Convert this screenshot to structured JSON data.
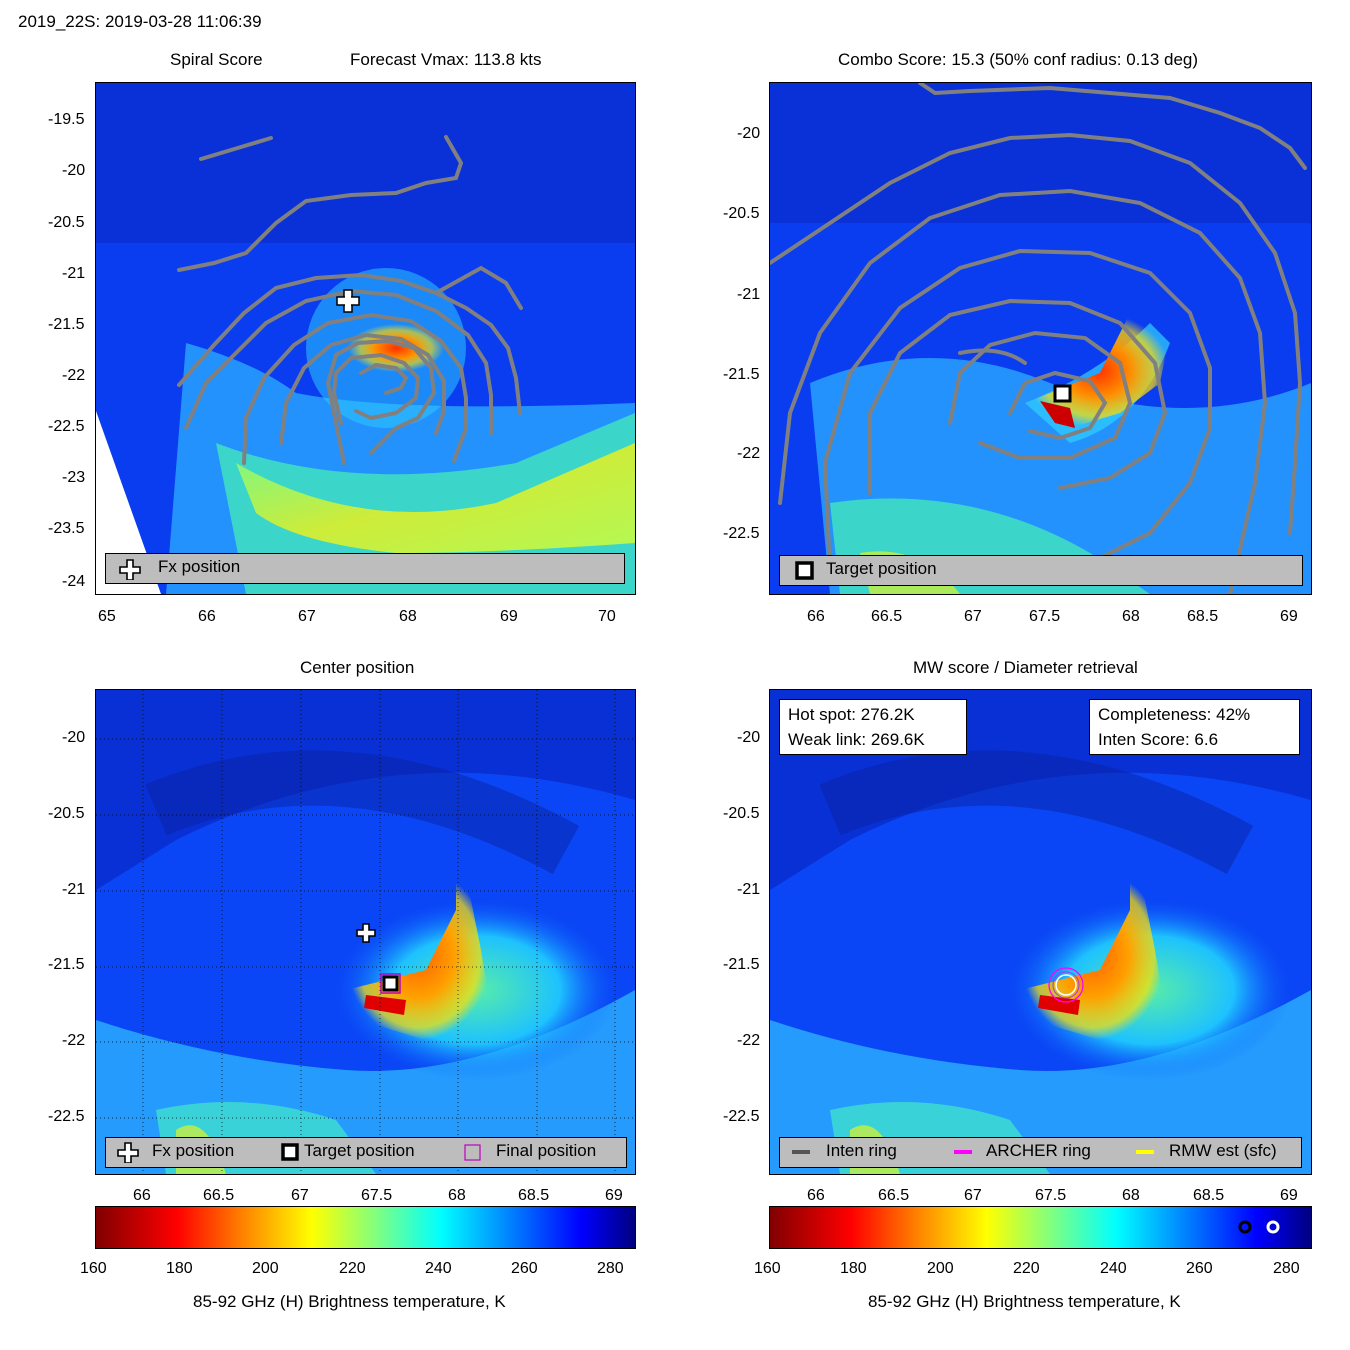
{
  "header": {
    "title": "2019_22S: 2019-03-28 11:06:39"
  },
  "colors": {
    "contour": "#808080",
    "inten_ring": "#555555",
    "archer_ring": "#ff00ff",
    "rmw": "#ffff00",
    "legend_bg": "#bdbdbd"
  },
  "panels": {
    "spiral": {
      "title": "Spiral Score",
      "subtitle": "Forecast Vmax: 113.8 kts",
      "legend": {
        "fx_label": "Fx position"
      },
      "x_ticks": [
        "65",
        "66",
        "67",
        "68",
        "69",
        "70"
      ],
      "y_ticks": [
        "-19.5",
        "-20",
        "-20.5",
        "-21",
        "-21.5",
        "-22",
        "-22.5",
        "-23",
        "-23.5",
        "-24"
      ]
    },
    "combo": {
      "title": "Combo Score: 15.3  (50% conf radius: 0.13 deg)",
      "legend": {
        "target_label": "Target position"
      },
      "x_ticks": [
        "66",
        "66.5",
        "67",
        "67.5",
        "68",
        "68.5",
        "69"
      ],
      "y_ticks": [
        "-20",
        "-20.5",
        "-21",
        "-21.5",
        "-22",
        "-22.5"
      ]
    },
    "center": {
      "title": "Center position",
      "legend": {
        "fx_label": "Fx position",
        "target_label": "Target position",
        "final_label": "Final position"
      },
      "x_ticks": [
        "66",
        "66.5",
        "67",
        "67.5",
        "68",
        "68.5",
        "69"
      ],
      "y_ticks": [
        "-20",
        "-20.5",
        "-21",
        "-21.5",
        "-22",
        "-22.5"
      ]
    },
    "mw": {
      "title": "MW score / Diameter retrieval",
      "hot_spot": "Hot spot: 276.2K",
      "weak_link": "Weak link: 269.6K",
      "completeness": "Completeness: 42%",
      "inten_score": "Inten Score: 6.6",
      "legend": {
        "inten_label": "Inten ring",
        "archer_label": "ARCHER ring",
        "rmw_label": "RMW est (sfc)"
      },
      "x_ticks": [
        "66",
        "66.5",
        "67",
        "67.5",
        "68",
        "68.5",
        "69"
      ],
      "y_ticks": [
        "-20",
        "-20.5",
        "-21",
        "-21.5",
        "-22",
        "-22.5"
      ]
    }
  },
  "colorbars": {
    "ticks": [
      "160",
      "180",
      "200",
      "220",
      "240",
      "260",
      "280"
    ],
    "label": "85-92 GHz (H) Brightness temperature, K"
  },
  "chart_data": [
    {
      "type": "heatmap",
      "title": "Spiral Score",
      "subtitle": "Forecast Vmax: 113.8 kts",
      "xlim": [
        64.9,
        70.3
      ],
      "ylim": [
        -24.1,
        -19.1
      ],
      "markers": [
        {
          "name": "Fx position",
          "lon": 67.4,
          "lat": -21.28
        }
      ]
    },
    {
      "type": "heatmap",
      "title": "Combo Score: 15.3  (50% conf radius: 0.13 deg)",
      "xlim": [
        65.7,
        69.15
      ],
      "ylim": [
        -22.85,
        -19.65
      ],
      "markers": [
        {
          "name": "Target position",
          "lon": 67.57,
          "lat": -21.62
        }
      ]
    },
    {
      "type": "heatmap",
      "title": "Center position",
      "xlim": [
        65.7,
        69.15
      ],
      "ylim": [
        -22.85,
        -19.65
      ],
      "markers": [
        {
          "name": "Fx position",
          "lon": 67.4,
          "lat": -21.28
        },
        {
          "name": "Target position",
          "lon": 67.57,
          "lat": -21.62
        },
        {
          "name": "Final position",
          "lon": 67.57,
          "lat": -21.62
        }
      ]
    },
    {
      "type": "heatmap",
      "title": "MW score / Diameter retrieval",
      "xlim": [
        65.7,
        69.15
      ],
      "ylim": [
        -22.85,
        -19.65
      ],
      "rings_center": {
        "lon": 67.7,
        "lat": -21.65
      }
    },
    {
      "type": "colorbar",
      "label": "85-92 GHz (H) Brightness temperature, K",
      "range": [
        160,
        285
      ]
    }
  ]
}
